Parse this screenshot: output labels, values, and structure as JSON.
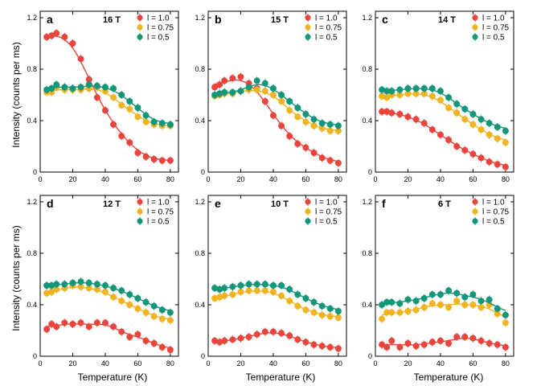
{
  "figure": {
    "ylabel": "Intensity (counts per ms)",
    "xlabel": "Temperature (K)"
  },
  "chart_data": [
    {
      "type": "scatter",
      "panel": "a",
      "field": "16 T",
      "xlim": [
        0,
        85
      ],
      "ylim": [
        0,
        1.25
      ],
      "xticks": [
        0,
        20,
        40,
        60,
        80
      ],
      "yticks": [
        0,
        0.4,
        0.8,
        1.2
      ],
      "series": [
        {
          "name": "l = 1.0",
          "color": "#e8453c",
          "x": [
            4,
            7,
            10,
            15,
            20,
            25,
            30,
            35,
            40,
            45,
            50,
            55,
            60,
            65,
            70,
            75,
            80
          ],
          "y": [
            1.05,
            1.06,
            1.08,
            1.05,
            1.0,
            0.88,
            0.72,
            0.58,
            0.48,
            0.37,
            0.28,
            0.23,
            0.15,
            0.12,
            0.1,
            0.09,
            0.09
          ]
        },
        {
          "name": "l = 0.75",
          "color": "#f0b321",
          "x": [
            4,
            7,
            10,
            15,
            20,
            25,
            30,
            35,
            40,
            45,
            50,
            55,
            60,
            65,
            70,
            75,
            80
          ],
          "y": [
            0.62,
            0.62,
            0.66,
            0.64,
            0.64,
            0.64,
            0.65,
            0.66,
            0.63,
            0.58,
            0.52,
            0.49,
            0.43,
            0.39,
            0.37,
            0.36,
            0.36
          ]
        },
        {
          "name": "l = 0.5",
          "color": "#13967a",
          "x": [
            4,
            7,
            10,
            15,
            20,
            25,
            30,
            35,
            40,
            45,
            50,
            55,
            60,
            65,
            70,
            75,
            80
          ],
          "y": [
            0.64,
            0.65,
            0.68,
            0.66,
            0.65,
            0.66,
            0.68,
            0.67,
            0.66,
            0.65,
            0.6,
            0.55,
            0.5,
            0.44,
            0.39,
            0.38,
            0.37
          ]
        }
      ]
    },
    {
      "type": "scatter",
      "panel": "b",
      "field": "15 T",
      "xlim": [
        0,
        85
      ],
      "ylim": [
        0,
        1.25
      ],
      "xticks": [
        0,
        20,
        40,
        60,
        80
      ],
      "yticks": [
        0,
        0.4,
        0.8,
        1.2
      ],
      "series": [
        {
          "name": "l = 1.0",
          "color": "#e8453c",
          "x": [
            4,
            7,
            10,
            15,
            20,
            25,
            30,
            35,
            40,
            45,
            50,
            55,
            60,
            65,
            70,
            75,
            80
          ],
          "y": [
            0.66,
            0.68,
            0.71,
            0.73,
            0.74,
            0.69,
            0.65,
            0.55,
            0.44,
            0.36,
            0.28,
            0.22,
            0.19,
            0.15,
            0.11,
            0.09,
            0.07
          ]
        },
        {
          "name": "l = 0.75",
          "color": "#f0b321",
          "x": [
            4,
            7,
            10,
            15,
            20,
            25,
            30,
            35,
            40,
            45,
            50,
            55,
            60,
            65,
            70,
            75,
            80
          ],
          "y": [
            0.59,
            0.6,
            0.61,
            0.61,
            0.63,
            0.64,
            0.64,
            0.63,
            0.6,
            0.55,
            0.48,
            0.43,
            0.39,
            0.36,
            0.34,
            0.32,
            0.32
          ]
        },
        {
          "name": "l = 0.5",
          "color": "#13967a",
          "x": [
            4,
            7,
            10,
            15,
            20,
            25,
            30,
            35,
            40,
            45,
            50,
            55,
            60,
            65,
            70,
            75,
            80
          ],
          "y": [
            0.6,
            0.61,
            0.62,
            0.62,
            0.63,
            0.66,
            0.71,
            0.69,
            0.65,
            0.6,
            0.55,
            0.5,
            0.45,
            0.41,
            0.38,
            0.37,
            0.36
          ]
        }
      ]
    },
    {
      "type": "scatter",
      "panel": "c",
      "field": "14 T",
      "xlim": [
        0,
        85
      ],
      "ylim": [
        0,
        1.25
      ],
      "xticks": [
        0,
        20,
        40,
        60,
        80
      ],
      "yticks": [
        0,
        0.4,
        0.8,
        1.2
      ],
      "series": [
        {
          "name": "l = 1.0",
          "color": "#e8453c",
          "x": [
            4,
            7,
            10,
            15,
            20,
            25,
            30,
            35,
            40,
            45,
            50,
            55,
            60,
            65,
            70,
            75,
            80
          ],
          "y": [
            0.47,
            0.47,
            0.46,
            0.45,
            0.43,
            0.41,
            0.38,
            0.33,
            0.29,
            0.25,
            0.2,
            0.17,
            0.14,
            0.11,
            0.08,
            0.06,
            0.04
          ]
        },
        {
          "name": "l = 0.75",
          "color": "#f0b321",
          "x": [
            4,
            7,
            10,
            15,
            20,
            25,
            30,
            35,
            40,
            45,
            50,
            55,
            60,
            65,
            70,
            75,
            80
          ],
          "y": [
            0.59,
            0.58,
            0.6,
            0.6,
            0.61,
            0.61,
            0.61,
            0.59,
            0.56,
            0.5,
            0.46,
            0.41,
            0.37,
            0.33,
            0.29,
            0.26,
            0.23
          ]
        },
        {
          "name": "l = 0.5",
          "color": "#13967a",
          "x": [
            4,
            7,
            10,
            15,
            20,
            25,
            30,
            35,
            40,
            45,
            50,
            55,
            60,
            65,
            70,
            75,
            80
          ],
          "y": [
            0.64,
            0.63,
            0.63,
            0.64,
            0.65,
            0.65,
            0.65,
            0.65,
            0.63,
            0.58,
            0.53,
            0.49,
            0.45,
            0.41,
            0.38,
            0.35,
            0.32
          ]
        }
      ]
    },
    {
      "type": "scatter",
      "panel": "d",
      "field": "12 T",
      "xlim": [
        0,
        85
      ],
      "ylim": [
        0,
        1.25
      ],
      "xticks": [
        0,
        20,
        40,
        60,
        80
      ],
      "yticks": [
        0,
        0.4,
        0.8,
        1.2
      ],
      "series": [
        {
          "name": "l = 1.0",
          "color": "#e8453c",
          "x": [
            4,
            7,
            10,
            15,
            20,
            25,
            30,
            35,
            40,
            45,
            50,
            55,
            60,
            65,
            70,
            75,
            80
          ],
          "y": [
            0.21,
            0.25,
            0.23,
            0.26,
            0.25,
            0.26,
            0.23,
            0.26,
            0.26,
            0.23,
            0.19,
            0.15,
            0.17,
            0.12,
            0.1,
            0.07,
            0.05
          ]
        },
        {
          "name": "l = 0.75",
          "color": "#f0b321",
          "x": [
            4,
            7,
            10,
            15,
            20,
            25,
            30,
            35,
            40,
            45,
            50,
            55,
            60,
            65,
            70,
            75,
            80
          ],
          "y": [
            0.49,
            0.5,
            0.52,
            0.53,
            0.55,
            0.54,
            0.53,
            0.52,
            0.5,
            0.46,
            0.43,
            0.4,
            0.37,
            0.34,
            0.31,
            0.29,
            0.28
          ]
        },
        {
          "name": "l = 0.5",
          "color": "#13967a",
          "x": [
            4,
            7,
            10,
            15,
            20,
            25,
            30,
            35,
            40,
            45,
            50,
            55,
            60,
            65,
            70,
            75,
            80
          ],
          "y": [
            0.55,
            0.55,
            0.56,
            0.56,
            0.57,
            0.58,
            0.57,
            0.56,
            0.55,
            0.53,
            0.51,
            0.48,
            0.45,
            0.42,
            0.39,
            0.36,
            0.34
          ]
        }
      ]
    },
    {
      "type": "scatter",
      "panel": "e",
      "field": "10 T",
      "xlim": [
        0,
        85
      ],
      "ylim": [
        0,
        1.25
      ],
      "xticks": [
        0,
        20,
        40,
        60,
        80
      ],
      "yticks": [
        0,
        0.4,
        0.8,
        1.2
      ],
      "series": [
        {
          "name": "l = 1.0",
          "color": "#e8453c",
          "x": [
            4,
            7,
            10,
            15,
            20,
            25,
            30,
            35,
            40,
            45,
            50,
            55,
            60,
            65,
            70,
            75,
            80
          ],
          "y": [
            0.12,
            0.11,
            0.12,
            0.13,
            0.14,
            0.15,
            0.17,
            0.19,
            0.19,
            0.18,
            0.16,
            0.13,
            0.11,
            0.09,
            0.08,
            0.07,
            0.06
          ]
        },
        {
          "name": "l = 0.75",
          "color": "#f0b321",
          "x": [
            4,
            7,
            10,
            15,
            20,
            25,
            30,
            35,
            40,
            45,
            50,
            55,
            60,
            65,
            70,
            75,
            80
          ],
          "y": [
            0.45,
            0.46,
            0.47,
            0.48,
            0.5,
            0.51,
            0.51,
            0.51,
            0.5,
            0.47,
            0.43,
            0.39,
            0.36,
            0.34,
            0.32,
            0.31,
            0.3
          ]
        },
        {
          "name": "l = 0.5",
          "color": "#13967a",
          "x": [
            4,
            7,
            10,
            15,
            20,
            25,
            30,
            35,
            40,
            45,
            50,
            55,
            60,
            65,
            70,
            75,
            80
          ],
          "y": [
            0.53,
            0.52,
            0.53,
            0.54,
            0.55,
            0.56,
            0.56,
            0.56,
            0.55,
            0.55,
            0.52,
            0.48,
            0.45,
            0.42,
            0.39,
            0.37,
            0.35
          ]
        }
      ]
    },
    {
      "type": "scatter",
      "panel": "f",
      "field": "6 T",
      "xlim": [
        0,
        85
      ],
      "ylim": [
        0,
        1.25
      ],
      "xticks": [
        0,
        20,
        40,
        60,
        80
      ],
      "yticks": [
        0,
        0.4,
        0.8,
        1.2
      ],
      "series": [
        {
          "name": "l = 1.0",
          "color": "#e8453c",
          "x": [
            4,
            7,
            10,
            15,
            20,
            25,
            30,
            35,
            40,
            45,
            50,
            55,
            60,
            65,
            70,
            75,
            80
          ],
          "y": [
            0.09,
            0.07,
            0.12,
            0.07,
            0.1,
            0.08,
            0.09,
            0.11,
            0.12,
            0.1,
            0.15,
            0.15,
            0.14,
            0.12,
            0.1,
            0.09,
            0.07
          ]
        },
        {
          "name": "l = 0.75",
          "color": "#f0b321",
          "x": [
            4,
            7,
            10,
            15,
            20,
            25,
            30,
            35,
            40,
            45,
            50,
            55,
            60,
            65,
            70,
            75,
            80
          ],
          "y": [
            0.29,
            0.34,
            0.34,
            0.34,
            0.35,
            0.36,
            0.38,
            0.41,
            0.4,
            0.38,
            0.43,
            0.4,
            0.4,
            0.38,
            0.4,
            0.33,
            0.26
          ]
        },
        {
          "name": "l = 0.5",
          "color": "#13967a",
          "x": [
            4,
            7,
            10,
            15,
            20,
            25,
            30,
            35,
            40,
            45,
            50,
            55,
            60,
            65,
            70,
            75,
            80
          ],
          "y": [
            0.4,
            0.42,
            0.42,
            0.41,
            0.44,
            0.43,
            0.45,
            0.48,
            0.48,
            0.51,
            0.49,
            0.46,
            0.48,
            0.43,
            0.44,
            0.37,
            0.32
          ]
        }
      ]
    }
  ]
}
